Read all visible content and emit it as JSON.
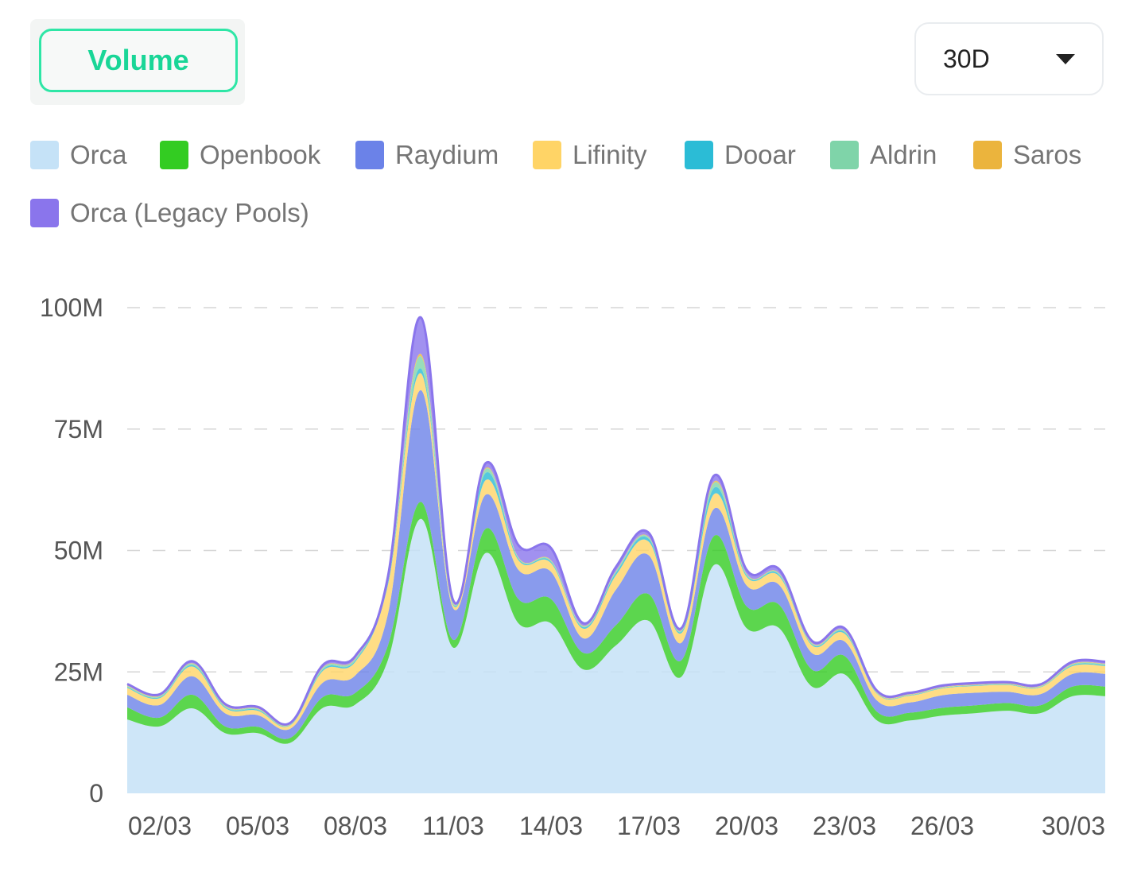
{
  "header": {
    "active_tab": "Volume",
    "range_selector": {
      "value": "30D",
      "icon": "chevron-down-icon"
    }
  },
  "legend": [
    {
      "label": "Orca",
      "color": "#c5e2f7"
    },
    {
      "label": "Openbook",
      "color": "#33cc22"
    },
    {
      "label": "Raydium",
      "color": "#6b82e8"
    },
    {
      "label": "Lifinity",
      "color": "#ffd466"
    },
    {
      "label": "Dooar",
      "color": "#2bbcd6"
    },
    {
      "label": "Aldrin",
      "color": "#7fd4a9"
    },
    {
      "label": "Saros",
      "color": "#ebb43d"
    },
    {
      "label": "Orca (Legacy Pools)",
      "color": "#8a75ec"
    }
  ],
  "chart_data": {
    "type": "area",
    "stacked": true,
    "x": [
      "01/03",
      "02/03",
      "03/03",
      "04/03",
      "05/03",
      "06/03",
      "07/03",
      "08/03",
      "09/03",
      "10/03",
      "11/03",
      "12/03",
      "13/03",
      "14/03",
      "15/03",
      "16/03",
      "17/03",
      "18/03",
      "19/03",
      "20/03",
      "21/03",
      "22/03",
      "23/03",
      "24/03",
      "25/03",
      "26/03",
      "27/03",
      "28/03",
      "29/03",
      "30/03",
      "31/03"
    ],
    "x_tick_labels": [
      "02/03",
      "05/03",
      "08/03",
      "11/03",
      "14/03",
      "17/03",
      "20/03",
      "23/03",
      "26/03",
      "30/03"
    ],
    "y_ticks": [
      "0",
      "25M",
      "50M",
      "75M",
      "100M"
    ],
    "ylim": [
      0,
      100
    ],
    "y_unit": "M",
    "grid": "horizontal-dashed",
    "series": [
      {
        "name": "Orca",
        "color": "#c5e2f7",
        "values": [
          15.2,
          13.8,
          17.5,
          12.4,
          12.4,
          10.4,
          17.6,
          18.3,
          27.5,
          56.5,
          30.0,
          49.5,
          35.0,
          35.0,
          25.5,
          30.5,
          35.5,
          24.0,
          47.0,
          34.0,
          34.0,
          22.0,
          24.5,
          15.0,
          15.0,
          16.0,
          16.5,
          17.0,
          16.5,
          20.0,
          20.0
        ]
      },
      {
        "name": "Openbook",
        "color": "#33cc22",
        "values": [
          2.5,
          1.8,
          2.8,
          1.4,
          1.3,
          1.0,
          2.2,
          2.4,
          3.0,
          3.5,
          1.6,
          5.0,
          5.0,
          5.0,
          3.4,
          4.2,
          5.5,
          3.4,
          6.0,
          4.5,
          4.8,
          3.5,
          3.8,
          1.8,
          1.6,
          1.6,
          1.6,
          1.6,
          1.6,
          2.0,
          2.0
        ]
      },
      {
        "name": "Raydium",
        "color": "#6b82e8",
        "values": [
          2.6,
          2.6,
          3.8,
          2.7,
          2.4,
          1.9,
          3.0,
          3.6,
          6.5,
          23.0,
          6.5,
          7.0,
          6.0,
          5.6,
          3.0,
          7.3,
          8.0,
          3.6,
          5.6,
          4.3,
          4.1,
          3.4,
          3.0,
          2.3,
          2.1,
          2.6,
          2.6,
          2.3,
          2.3,
          2.6,
          2.6
        ]
      },
      {
        "name": "Lifinity",
        "color": "#ffd466",
        "values": [
          1.4,
          1.4,
          2.0,
          1.1,
          0.9,
          0.7,
          2.4,
          2.8,
          6.0,
          3.5,
          0.6,
          3.0,
          2.0,
          1.8,
          2.0,
          3.0,
          2.8,
          2.0,
          3.0,
          1.8,
          1.8,
          1.6,
          1.6,
          1.4,
          1.4,
          1.4,
          1.4,
          1.4,
          1.4,
          1.6,
          1.6
        ]
      },
      {
        "name": "Dooar",
        "color": "#2bbcd6",
        "values": [
          0.2,
          0.2,
          0.3,
          0.2,
          0.2,
          0.1,
          0.3,
          0.3,
          0.5,
          1.0,
          0.2,
          1.5,
          0.3,
          0.3,
          0.3,
          0.5,
          0.6,
          0.3,
          1.3,
          0.3,
          0.3,
          0.2,
          0.3,
          0.1,
          0.1,
          0.1,
          0.1,
          0.1,
          0.1,
          0.2,
          0.2
        ]
      },
      {
        "name": "Aldrin",
        "color": "#7fd4a9",
        "values": [
          0.2,
          0.2,
          0.3,
          0.2,
          0.2,
          0.1,
          0.3,
          0.3,
          0.3,
          2.5,
          0.2,
          0.8,
          0.2,
          0.2,
          0.2,
          0.3,
          0.3,
          0.2,
          1.0,
          0.2,
          0.2,
          0.2,
          0.2,
          0.1,
          0.1,
          0.1,
          0.1,
          0.1,
          0.1,
          0.2,
          0.2
        ]
      },
      {
        "name": "Saros",
        "color": "#ebb43d",
        "values": [
          0.1,
          0.1,
          0.1,
          0.1,
          0.1,
          0.1,
          0.1,
          0.1,
          0.1,
          0.5,
          0.1,
          0.2,
          0.1,
          0.1,
          0.1,
          0.1,
          0.1,
          0.1,
          0.3,
          0.1,
          0.1,
          0.1,
          0.1,
          0.1,
          0.1,
          0.1,
          0.1,
          0.1,
          0.1,
          0.1,
          0.1
        ]
      },
      {
        "name": "Orca (Legacy Pools)",
        "color": "#8a75ec",
        "values": [
          0.3,
          0.3,
          0.4,
          0.3,
          0.3,
          0.2,
          0.5,
          0.5,
          0.8,
          7.5,
          0.5,
          1.0,
          2.5,
          2.5,
          0.5,
          0.8,
          0.8,
          0.4,
          1.2,
          0.8,
          0.8,
          0.4,
          0.5,
          0.3,
          0.3,
          0.3,
          0.3,
          0.3,
          0.3,
          0.4,
          0.4
        ]
      }
    ]
  }
}
